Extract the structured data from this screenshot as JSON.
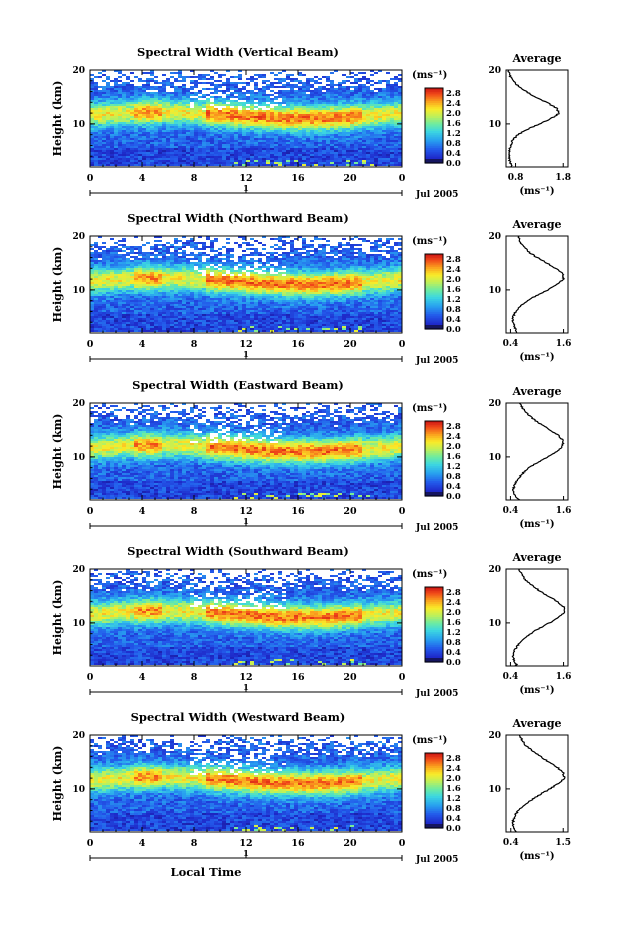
{
  "chart_data": [
    {
      "type": "heatmap",
      "title": "Spectral Width (Vertical Beam)",
      "ylabel": "Height (km)",
      "xticks": [
        "0",
        "4",
        "8",
        "12",
        "16",
        "20",
        "0"
      ],
      "yticks": [
        "20",
        "10"
      ],
      "xlim": [
        0,
        24
      ],
      "ylim": [
        2,
        20
      ],
      "date_index": "1",
      "date_label": "Jul 2005",
      "colorbar": {
        "unit": "(ms⁻¹)",
        "ticks": [
          "2.8",
          "2.4",
          "2.0",
          "1.6",
          "1.2",
          "0.8",
          "0.4",
          "0.0"
        ],
        "range": [
          0,
          3.0
        ]
      },
      "profile": {
        "title": "Average",
        "xlabel": "(ms⁻¹)",
        "xticks": [
          "0.8",
          "1.8"
        ],
        "xlim": [
          0.6,
          1.9
        ],
        "yticks": [
          "20",
          "10"
        ],
        "ylim": [
          2,
          20
        ],
        "height": [
          2,
          3,
          4,
          5,
          6,
          7,
          8,
          9,
          10,
          11,
          12,
          13,
          14,
          15,
          16,
          17,
          18,
          19,
          20
        ],
        "width": [
          0.72,
          0.68,
          0.66,
          0.67,
          0.7,
          0.74,
          0.85,
          1.05,
          1.3,
          1.55,
          1.72,
          1.65,
          1.45,
          1.22,
          1.02,
          0.86,
          0.75,
          0.68,
          0.64
        ]
      }
    },
    {
      "type": "heatmap",
      "title": "Spectral Width (Northward Beam)",
      "ylabel": "Height (km)",
      "xticks": [
        "0",
        "4",
        "8",
        "12",
        "16",
        "20",
        "0"
      ],
      "yticks": [
        "20",
        "10"
      ],
      "xlim": [
        0,
        24
      ],
      "ylim": [
        2,
        20
      ],
      "date_index": "1",
      "date_label": "Jul 2005",
      "colorbar": {
        "unit": "(ms⁻¹)",
        "ticks": [
          "2.8",
          "2.4",
          "2.0",
          "1.6",
          "1.2",
          "0.8",
          "0.4",
          "0.0"
        ],
        "range": [
          0,
          3.0
        ]
      },
      "profile": {
        "title": "Average",
        "xlabel": "(ms⁻¹)",
        "xticks": [
          "0.4",
          "1.6"
        ],
        "xlim": [
          0.3,
          1.7
        ],
        "yticks": [
          "20",
          "10"
        ],
        "ylim": [
          2,
          20
        ],
        "height": [
          2,
          3,
          4,
          5,
          6,
          7,
          8,
          9,
          10,
          11,
          12,
          13,
          14,
          15,
          16,
          17,
          18,
          19,
          20
        ],
        "width": [
          0.55,
          0.5,
          0.45,
          0.46,
          0.52,
          0.62,
          0.78,
          1.0,
          1.25,
          1.45,
          1.6,
          1.58,
          1.42,
          1.22,
          1.0,
          0.82,
          0.7,
          0.62,
          0.58
        ]
      }
    },
    {
      "type": "heatmap",
      "title": "Spectral Width (Eastward Beam)",
      "ylabel": "Height (km)",
      "xticks": [
        "0",
        "4",
        "8",
        "12",
        "16",
        "20",
        "0"
      ],
      "yticks": [
        "20",
        "10"
      ],
      "xlim": [
        0,
        24
      ],
      "ylim": [
        2,
        20
      ],
      "date_index": "1",
      "date_label": "Jul 2005",
      "colorbar": {
        "unit": "(ms⁻¹)",
        "ticks": [
          "2.8",
          "2.4",
          "2.0",
          "1.6",
          "1.2",
          "0.8",
          "0.4",
          "0.0"
        ],
        "range": [
          0,
          3.0
        ]
      },
      "profile": {
        "title": "Average",
        "xlabel": "(ms⁻¹)",
        "xticks": [
          "0.4",
          "1.6"
        ],
        "xlim": [
          0.3,
          1.7
        ],
        "yticks": [
          "20",
          "10"
        ],
        "ylim": [
          2,
          20
        ],
        "height": [
          2,
          3,
          4,
          5,
          6,
          7,
          8,
          9,
          10,
          11,
          12,
          13,
          14,
          15,
          16,
          17,
          18,
          19,
          20
        ],
        "width": [
          0.6,
          0.48,
          0.46,
          0.5,
          0.58,
          0.68,
          0.82,
          1.02,
          1.25,
          1.45,
          1.58,
          1.6,
          1.48,
          1.3,
          1.1,
          0.92,
          0.78,
          0.68,
          0.62
        ]
      }
    },
    {
      "type": "heatmap",
      "title": "Spectral Width (Southward Beam)",
      "ylabel": "Height (km)",
      "xticks": [
        "0",
        "4",
        "8",
        "12",
        "16",
        "20",
        "0"
      ],
      "yticks": [
        "20",
        "10"
      ],
      "xlim": [
        0,
        24
      ],
      "ylim": [
        2,
        20
      ],
      "date_index": "1",
      "date_label": "Jul 2005",
      "colorbar": {
        "unit": "(ms⁻¹)",
        "ticks": [
          "2.8",
          "2.4",
          "2.0",
          "1.6",
          "1.2",
          "0.8",
          "0.4",
          "0.0"
        ],
        "range": [
          0,
          3.0
        ]
      },
      "profile": {
        "title": "Average",
        "xlabel": "(ms⁻¹)",
        "xticks": [
          "0.4",
          "1.6"
        ],
        "xlim": [
          0.3,
          1.7
        ],
        "yticks": [
          "20",
          "10"
        ],
        "ylim": [
          2,
          20
        ],
        "height": [
          2,
          3,
          4,
          5,
          6,
          7,
          8,
          9,
          10,
          11,
          12,
          13,
          14,
          15,
          16,
          17,
          18,
          19,
          20
        ],
        "width": [
          0.55,
          0.48,
          0.46,
          0.5,
          0.58,
          0.7,
          0.85,
          1.05,
          1.28,
          1.48,
          1.62,
          1.6,
          1.45,
          1.25,
          1.05,
          0.88,
          0.74,
          0.65,
          0.6
        ]
      }
    },
    {
      "type": "heatmap",
      "title": "Spectral Width (Westward Beam)",
      "ylabel": "Height (km)",
      "xlabel": "Local Time",
      "xticks": [
        "0",
        "4",
        "8",
        "12",
        "16",
        "20",
        "0"
      ],
      "yticks": [
        "20",
        "10"
      ],
      "xlim": [
        0,
        24
      ],
      "ylim": [
        2,
        20
      ],
      "date_index": "1",
      "date_label": "Jul 2005",
      "colorbar": {
        "unit": "(ms⁻¹)",
        "ticks": [
          "2.8",
          "2.4",
          "2.0",
          "1.6",
          "1.2",
          "0.8",
          "0.4",
          "0.0"
        ],
        "range": [
          0,
          3.0
        ]
      },
      "profile": {
        "title": "Average",
        "xlabel": "(ms⁻¹)",
        "xticks": [
          "0.4",
          "1.5"
        ],
        "xlim": [
          0.3,
          1.6
        ],
        "yticks": [
          "20",
          "10"
        ],
        "ylim": [
          2,
          20
        ],
        "height": [
          2,
          3,
          4,
          5,
          6,
          7,
          8,
          9,
          10,
          11,
          12,
          13,
          14,
          15,
          16,
          17,
          18,
          19,
          20
        ],
        "width": [
          0.5,
          0.46,
          0.45,
          0.48,
          0.56,
          0.68,
          0.84,
          1.02,
          1.22,
          1.4,
          1.52,
          1.5,
          1.38,
          1.2,
          1.02,
          0.86,
          0.72,
          0.64,
          0.58
        ]
      }
    }
  ]
}
